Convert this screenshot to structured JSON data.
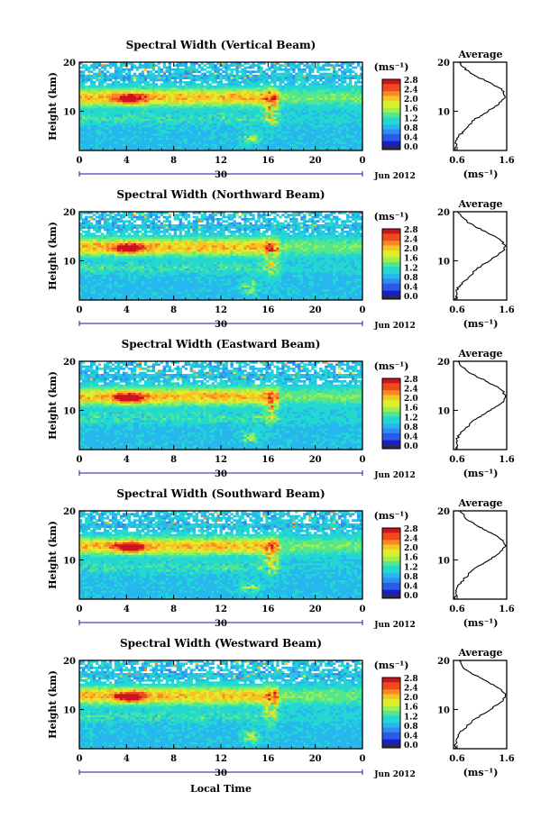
{
  "colors": {
    "colormap": [
      "#2a2a55",
      "#1b1bcf",
      "#2a5ae6",
      "#2f8cf0",
      "#27b7ee",
      "#22d8cf",
      "#52e690",
      "#9cef52",
      "#dcee2c",
      "#f9c224",
      "#f78a22",
      "#ee4a1e",
      "#c9151b"
    ]
  },
  "chart_data": [
    {
      "type": "heatmap",
      "title": "Spectral Width (Vertical Beam)",
      "ylabel": "Height (km)",
      "x_ticks": [
        "0",
        "4",
        "8",
        "12",
        "16",
        "20",
        "0"
      ],
      "y_ticks": [
        "20",
        "10"
      ],
      "date_label": "30",
      "month_label": "Jun 2012",
      "colorbar": {
        "unit": "(ms⁻¹)",
        "ticks": [
          "2.8",
          "2.4",
          "2.0",
          "1.6",
          "1.2",
          "0.8",
          "0.4",
          "0.0"
        ],
        "range": [
          0,
          2.8
        ]
      },
      "profile": {
        "title": "Average",
        "x_ticks": [
          "0.6",
          "1.6"
        ],
        "xlabel": "(ms⁻¹)",
        "y_ticks": [
          "20",
          "10"
        ],
        "xlim": [
          0.6,
          1.6
        ],
        "ylim": [
          2,
          20
        ],
        "points": [
          [
            0.62,
            2
          ],
          [
            0.66,
            3
          ],
          [
            0.64,
            4
          ],
          [
            0.7,
            5
          ],
          [
            0.8,
            6
          ],
          [
            0.88,
            7
          ],
          [
            0.95,
            8
          ],
          [
            1.1,
            9
          ],
          [
            1.25,
            10
          ],
          [
            1.38,
            11
          ],
          [
            1.5,
            12
          ],
          [
            1.57,
            13
          ],
          [
            1.55,
            14
          ],
          [
            1.42,
            15
          ],
          [
            1.25,
            16
          ],
          [
            1.05,
            17
          ],
          [
            0.9,
            18
          ],
          [
            0.78,
            19
          ],
          [
            0.7,
            20
          ]
        ]
      }
    },
    {
      "type": "heatmap",
      "title": "Spectral Width (Northward Beam)",
      "ylabel": "Height (km)",
      "x_ticks": [
        "0",
        "4",
        "8",
        "12",
        "16",
        "20",
        "0"
      ],
      "y_ticks": [
        "20",
        "10"
      ],
      "date_label": "30",
      "month_label": "Jun 2012",
      "colorbar": {
        "unit": "(ms⁻¹)",
        "ticks": [
          "2.8",
          "2.4",
          "2.0",
          "1.6",
          "1.2",
          "0.8",
          "0.4",
          "0.0"
        ],
        "range": [
          0,
          2.8
        ]
      },
      "profile": {
        "title": "Average",
        "x_ticks": [
          "0.6",
          "1.6"
        ],
        "xlabel": "(ms⁻¹)",
        "y_ticks": [
          "20",
          "10"
        ],
        "xlim": [
          0.6,
          1.6
        ],
        "ylim": [
          2,
          20
        ],
        "points": [
          [
            0.64,
            2
          ],
          [
            0.66,
            3
          ],
          [
            0.65,
            4
          ],
          [
            0.72,
            5
          ],
          [
            0.82,
            6
          ],
          [
            0.92,
            7
          ],
          [
            1.0,
            8
          ],
          [
            1.12,
            9
          ],
          [
            1.28,
            10
          ],
          [
            1.42,
            11
          ],
          [
            1.53,
            12
          ],
          [
            1.58,
            13
          ],
          [
            1.5,
            14
          ],
          [
            1.38,
            15
          ],
          [
            1.2,
            16
          ],
          [
            1.0,
            17
          ],
          [
            0.85,
            18
          ],
          [
            0.75,
            19
          ],
          [
            0.68,
            20
          ]
        ]
      }
    },
    {
      "type": "heatmap",
      "title": "Spectral Width (Eastward Beam)",
      "ylabel": "Height (km)",
      "x_ticks": [
        "0",
        "4",
        "8",
        "12",
        "16",
        "20",
        "0"
      ],
      "y_ticks": [
        "20",
        "10"
      ],
      "date_label": "30",
      "month_label": "Jun 2012",
      "colorbar": {
        "unit": "(ms⁻¹)",
        "ticks": [
          "2.8",
          "2.4",
          "2.0",
          "1.6",
          "1.2",
          "0.8",
          "0.4",
          "0.0"
        ],
        "range": [
          0,
          2.8
        ]
      },
      "profile": {
        "title": "Average",
        "x_ticks": [
          "0.6",
          "1.6"
        ],
        "xlabel": "(ms⁻¹)",
        "y_ticks": [
          "20",
          "10"
        ],
        "xlim": [
          0.6,
          1.6
        ],
        "ylim": [
          2,
          20
        ],
        "points": [
          [
            0.63,
            2
          ],
          [
            0.67,
            3
          ],
          [
            0.66,
            4
          ],
          [
            0.71,
            5
          ],
          [
            0.8,
            6
          ],
          [
            0.9,
            7
          ],
          [
            0.98,
            8
          ],
          [
            1.13,
            9
          ],
          [
            1.3,
            10
          ],
          [
            1.44,
            11
          ],
          [
            1.55,
            12
          ],
          [
            1.58,
            13
          ],
          [
            1.52,
            14
          ],
          [
            1.38,
            15
          ],
          [
            1.2,
            16
          ],
          [
            1.02,
            17
          ],
          [
            0.86,
            18
          ],
          [
            0.74,
            19
          ],
          [
            0.68,
            20
          ]
        ]
      }
    },
    {
      "type": "heatmap",
      "title": "Spectral Width (Southward Beam)",
      "ylabel": "Height (km)",
      "x_ticks": [
        "0",
        "4",
        "8",
        "12",
        "16",
        "20",
        "0"
      ],
      "y_ticks": [
        "20",
        "10"
      ],
      "date_label": "30",
      "month_label": "Jun 2012",
      "colorbar": {
        "unit": "(ms⁻¹)",
        "ticks": [
          "2.8",
          "2.4",
          "2.0",
          "1.6",
          "1.2",
          "0.8",
          "0.4",
          "0.0"
        ],
        "range": [
          0,
          2.8
        ]
      },
      "profile": {
        "title": "Average",
        "x_ticks": [
          "0.6",
          "1.6"
        ],
        "xlabel": "(ms⁻¹)",
        "y_ticks": [
          "20",
          "10"
        ],
        "xlim": [
          0.6,
          1.6
        ],
        "ylim": [
          2,
          20
        ],
        "points": [
          [
            0.63,
            2
          ],
          [
            0.65,
            3
          ],
          [
            0.66,
            4
          ],
          [
            0.7,
            5
          ],
          [
            0.79,
            6
          ],
          [
            0.88,
            7
          ],
          [
            0.97,
            8
          ],
          [
            1.12,
            9
          ],
          [
            1.27,
            10
          ],
          [
            1.41,
            11
          ],
          [
            1.52,
            12
          ],
          [
            1.58,
            13
          ],
          [
            1.53,
            14
          ],
          [
            1.4,
            15
          ],
          [
            1.22,
            16
          ],
          [
            1.04,
            17
          ],
          [
            0.88,
            18
          ],
          [
            0.8,
            19
          ],
          [
            0.72,
            20
          ]
        ]
      }
    },
    {
      "type": "heatmap",
      "title": "Spectral Width (Westward Beam)",
      "ylabel": "Height (km)",
      "xlabel": "Local Time",
      "x_ticks": [
        "0",
        "4",
        "8",
        "12",
        "16",
        "20",
        "0"
      ],
      "y_ticks": [
        "20",
        "10"
      ],
      "date_label": "30",
      "month_label": "Jun 2012",
      "colorbar": {
        "unit": "(ms⁻¹)",
        "ticks": [
          "2.8",
          "2.4",
          "2.0",
          "1.6",
          "1.2",
          "0.8",
          "0.4",
          "0.0"
        ],
        "range": [
          0,
          2.8
        ]
      },
      "profile": {
        "title": "Average",
        "x_ticks": [
          "0.6",
          "1.6"
        ],
        "xlabel": "(ms⁻¹)",
        "y_ticks": [
          "20",
          "10"
        ],
        "xlim": [
          0.6,
          1.6
        ],
        "ylim": [
          2,
          20
        ],
        "points": [
          [
            0.62,
            2
          ],
          [
            0.64,
            3
          ],
          [
            0.66,
            4
          ],
          [
            0.7,
            5
          ],
          [
            0.8,
            6
          ],
          [
            0.9,
            7
          ],
          [
            0.99,
            8
          ],
          [
            1.14,
            9
          ],
          [
            1.3,
            10
          ],
          [
            1.43,
            11
          ],
          [
            1.54,
            12
          ],
          [
            1.58,
            13
          ],
          [
            1.5,
            14
          ],
          [
            1.36,
            15
          ],
          [
            1.18,
            16
          ],
          [
            1.0,
            17
          ],
          [
            0.85,
            18
          ],
          [
            0.76,
            19
          ],
          [
            0.7,
            20
          ]
        ]
      }
    }
  ]
}
